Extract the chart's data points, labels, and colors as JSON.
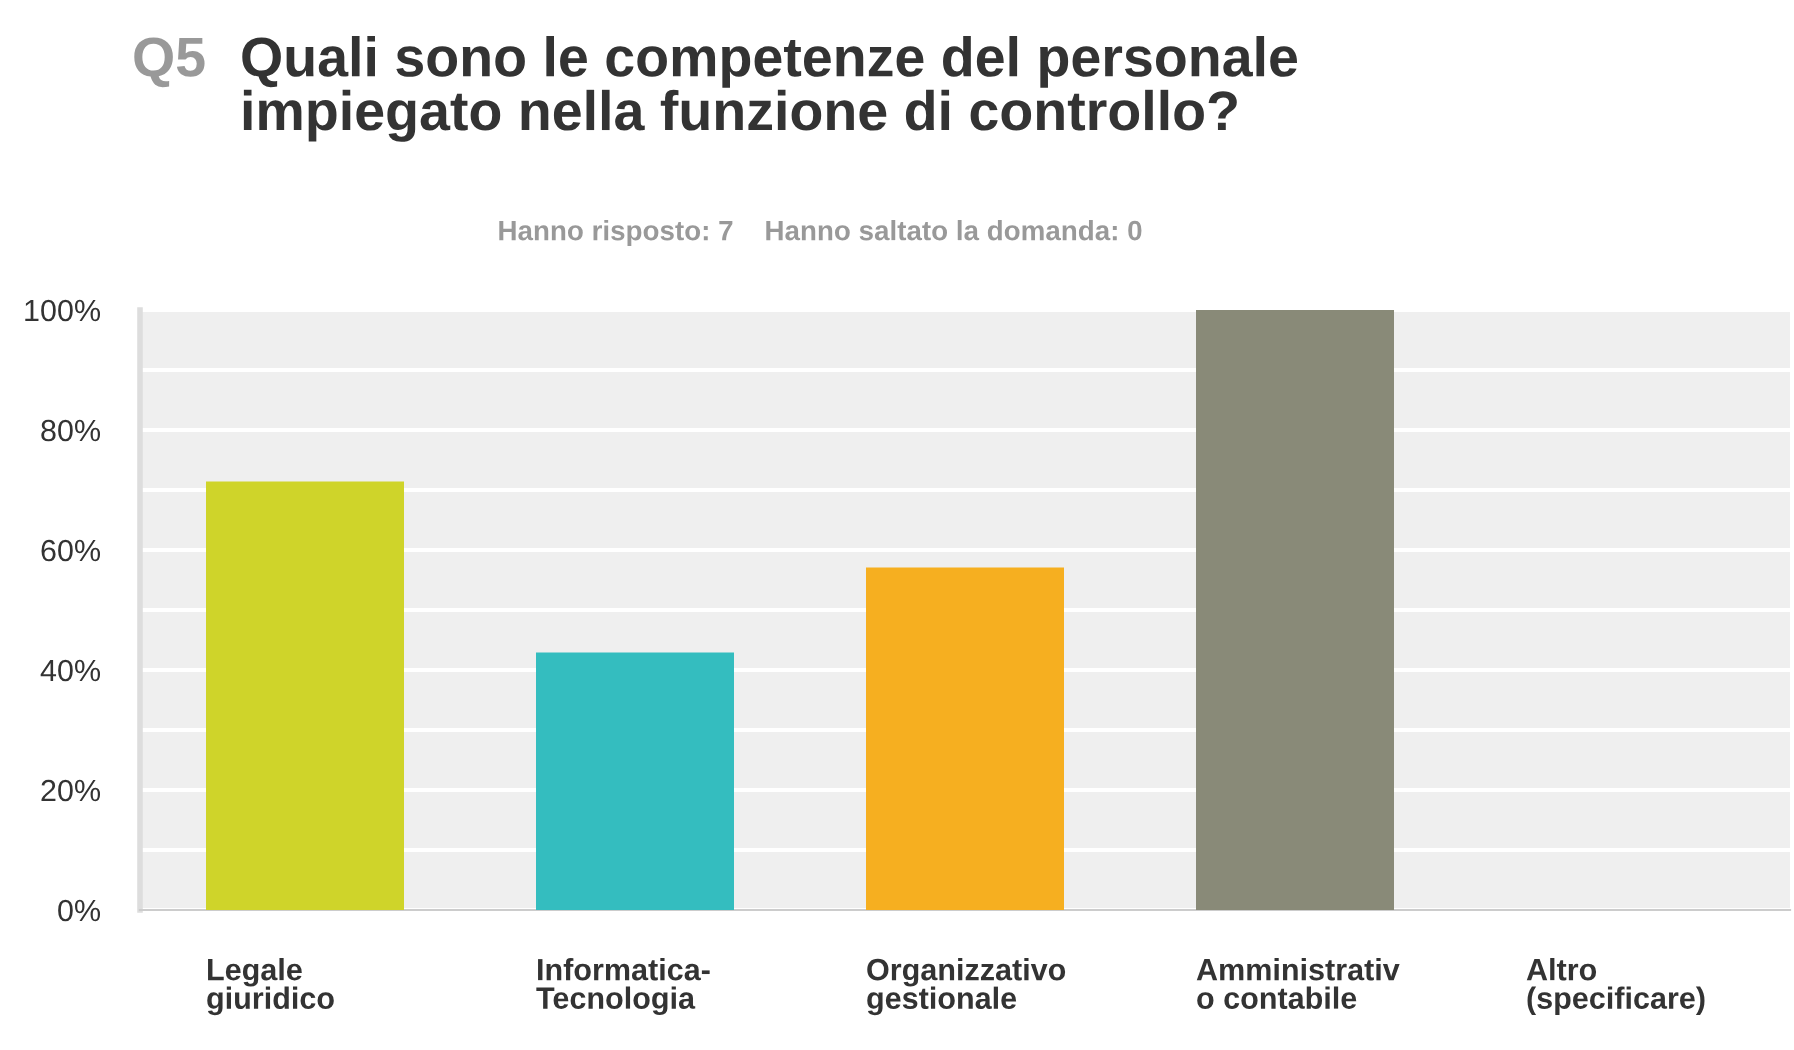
{
  "chart_data": {
    "type": "bar",
    "title": "Quali sono le competenze del personale\nimpiegato nella funzione di controllo?",
    "subtitle": "Hanno risposto: 7    Hanno saltato la domanda: 0",
    "annotations": [
      "Q5"
    ],
    "categories": [
      "Legale\ngiuridico",
      "Informatica-\nTecnologia",
      "Organizzativo\ngestionale",
      "Amministrativ\no contabile",
      "Altro\n(specificare)"
    ],
    "values": [
      71.4,
      42.9,
      57.1,
      100,
      0
    ],
    "colors": [
      "#cfd42a",
      "#34bdbf",
      "#f6af20",
      "#898a78",
      "#898a78"
    ],
    "ylim": [
      0,
      100
    ],
    "yticks": [
      {
        "value": 0,
        "label": "0%"
      },
      {
        "value": 10,
        "label": null
      },
      {
        "value": 20,
        "label": "20%"
      },
      {
        "value": 30,
        "label": null
      },
      {
        "value": 40,
        "label": "40%"
      },
      {
        "value": 50,
        "label": null
      },
      {
        "value": 60,
        "label": "60%"
      },
      {
        "value": 70,
        "label": null
      },
      {
        "value": 80,
        "label": "80%"
      },
      {
        "value": 90,
        "label": null
      },
      {
        "value": 100,
        "label": "100%"
      }
    ],
    "grid": "y"
  }
}
